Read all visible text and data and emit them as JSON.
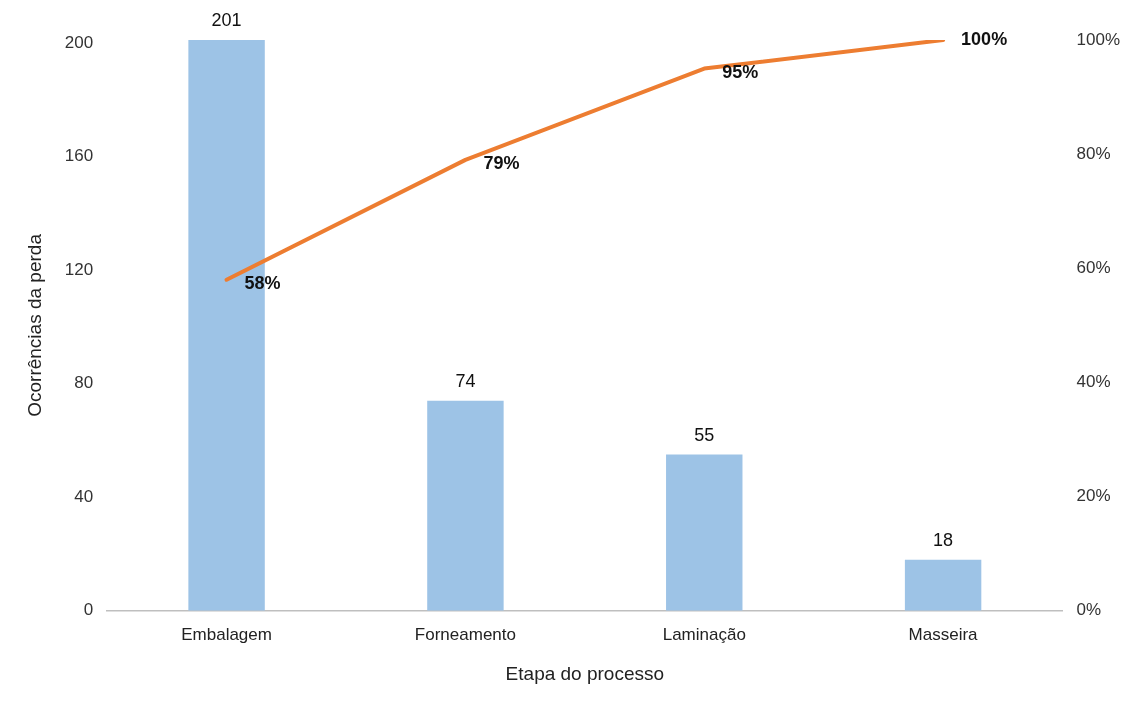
{
  "chart_data": {
    "type": "bar",
    "xlabel": "Etapa do processo",
    "ylabel": "Ocorrências da perda",
    "categories": [
      "Embalagem",
      "Forneamento",
      "Laminação",
      "Masseira"
    ],
    "series": [
      {
        "color": "#9dc3e6",
        "values": [
          201,
          74,
          55,
          18
        ],
        "value_labels": [
          "201",
          "74",
          "55",
          "18"
        ]
      },
      {
        "type": "line",
        "axis": "y2",
        "color": "#ed7d31",
        "values": [
          58,
          79,
          95,
          100
        ],
        "value_labels": [
          "58%",
          "79%",
          "95%",
          "100%"
        ]
      }
    ],
    "ylim": [
      0,
      201
    ],
    "yticks": [
      0,
      40,
      80,
      120,
      160,
      200
    ],
    "y2lim": [
      0,
      100
    ],
    "y2ticks": [
      {
        "value": 0,
        "label": "0%"
      },
      {
        "value": 20,
        "label": "20%"
      },
      {
        "value": 40,
        "label": "40%"
      },
      {
        "value": 60,
        "label": "60%"
      },
      {
        "value": 80,
        "label": "80%"
      },
      {
        "value": 100,
        "label": "100%"
      }
    ],
    "marker": "none",
    "grid": false,
    "legend": false
  }
}
